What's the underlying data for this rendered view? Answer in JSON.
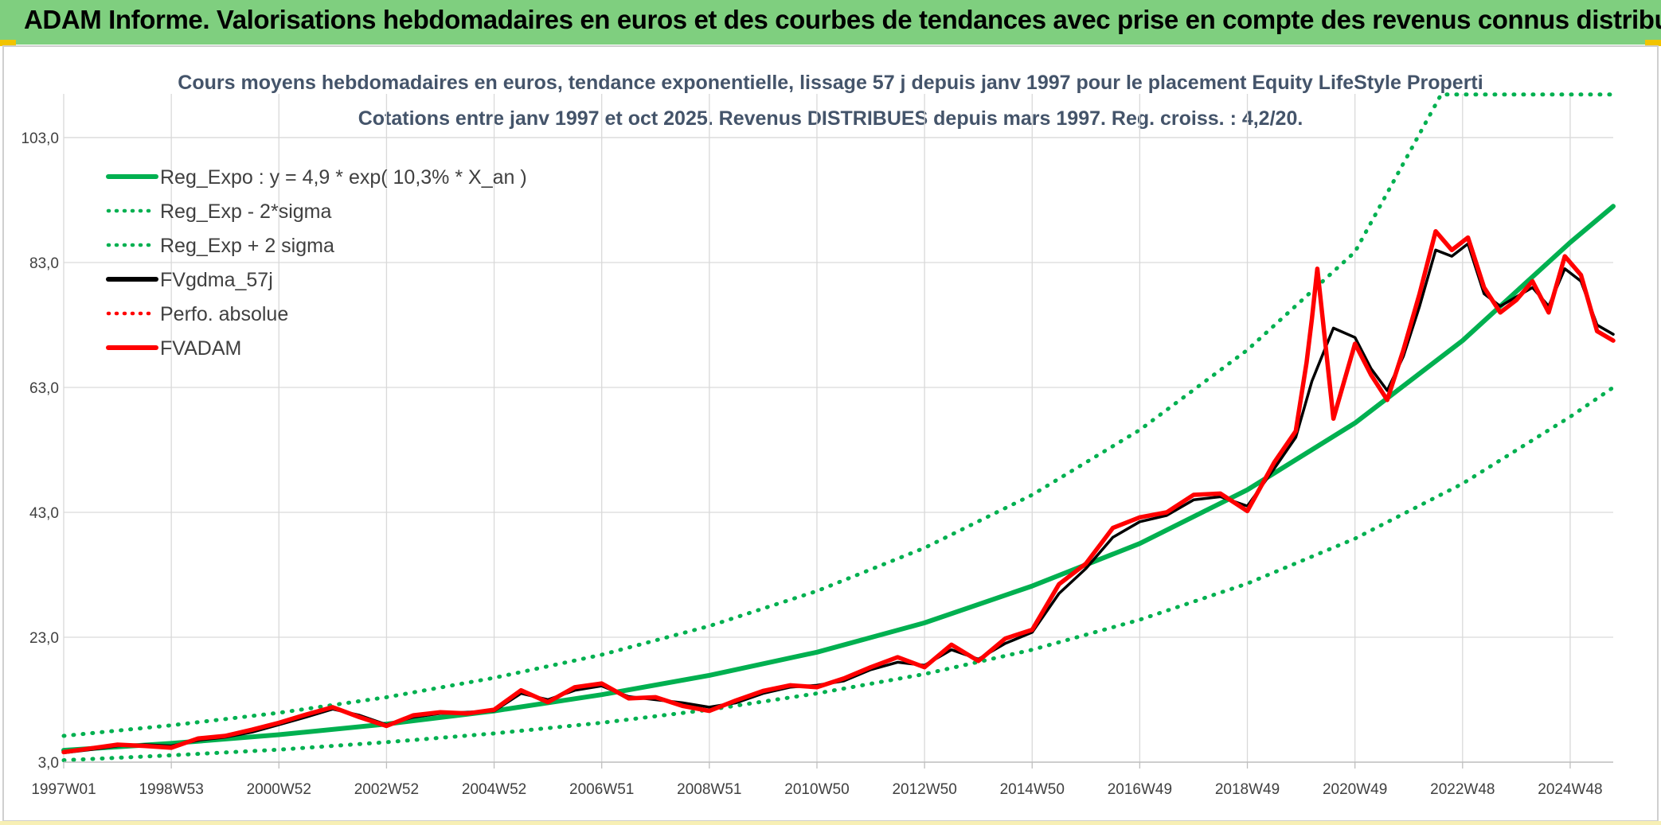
{
  "banner": {
    "title": "ADAM Informe. Valorisations hebdomadaires en euros et des courbes de tendances avec prise en compte des revenus connus distribués"
  },
  "colors": {
    "banner_bg": "#7fcf7f",
    "regression": "#00b050",
    "smoothed": "#000000",
    "price": "#ff0000"
  },
  "chart_data": {
    "type": "line",
    "title": "Cours moyens hebdomadaires en euros, tendance exponentielle, lissage 57 j depuis janv 1997 pour le placement Equity LifeStyle Properti",
    "subtitle": "Cotations entre janv 1997 et oct 2025. Revenus DISTRIBUES depuis mars 1997. Reg. croiss. : 4,2/20.",
    "xlabel": "",
    "ylabel": "",
    "xlim": [
      1997.0,
      2025.8
    ],
    "ylim": [
      3,
      110
    ],
    "y_ticks": [
      "3,0",
      "23,0",
      "43,0",
      "63,0",
      "83,0",
      "103,0"
    ],
    "x_ticks": [
      {
        "x": 1997.0,
        "label": "1997W01"
      },
      {
        "x": 1999.0,
        "label": "1998W53"
      },
      {
        "x": 2001.0,
        "label": "2000W52"
      },
      {
        "x": 2003.0,
        "label": "2002W52"
      },
      {
        "x": 2005.0,
        "label": "2004W52"
      },
      {
        "x": 2007.0,
        "label": "2006W51"
      },
      {
        "x": 2009.0,
        "label": "2008W51"
      },
      {
        "x": 2011.0,
        "label": "2010W50"
      },
      {
        "x": 2013.0,
        "label": "2012W50"
      },
      {
        "x": 2015.0,
        "label": "2014W50"
      },
      {
        "x": 2017.0,
        "label": "2016W49"
      },
      {
        "x": 2019.0,
        "label": "2018W49"
      },
      {
        "x": 2021.0,
        "label": "2020W49"
      },
      {
        "x": 2023.0,
        "label": "2022W48"
      },
      {
        "x": 2025.0,
        "label": "2024W48"
      }
    ],
    "grid": true,
    "legend_position": "top-left",
    "legend": [
      {
        "label": "Reg_Expo : y = 4,9 * exp( 10,3% *  X_an )",
        "color": "#00b050",
        "style": "solid"
      },
      {
        "label": "Reg_Exp - 2*sigma",
        "color": "#00b050",
        "style": "dotted"
      },
      {
        "label": "Reg_Exp + 2 sigma",
        "color": "#00b050",
        "style": "dotted"
      },
      {
        "label": "FVgdma_57j",
        "color": "#000000",
        "style": "solid"
      },
      {
        "label": "Perfo. absolue",
        "color": "#ff0000",
        "style": "dotted"
      },
      {
        "label": "FVADAM",
        "color": "#ff0000",
        "style": "solid"
      }
    ],
    "series": [
      {
        "name": "Reg_Expo : y = 4,9 * exp( 10,3% *  X_an )",
        "color": "#00b050",
        "style": "solid",
        "x": [
          1997.0,
          1999.0,
          2001.0,
          2003.0,
          2005.0,
          2007.0,
          2009.0,
          2011.0,
          2013.0,
          2015.0,
          2017.0,
          2019.0,
          2021.0,
          2023.0,
          2025.0,
          2025.8
        ],
        "y": [
          4.9,
          6.0,
          7.4,
          9.1,
          11.2,
          13.8,
          16.9,
          20.6,
          25.3,
          31.2,
          38.0,
          46.6,
          57.3,
          70.5,
          86.2,
          92.0
        ]
      },
      {
        "name": "Reg_Exp - 2*sigma",
        "color": "#00b050",
        "style": "dotted",
        "x": [
          1997.0,
          1999.0,
          2001.0,
          2003.0,
          2005.0,
          2007.0,
          2009.0,
          2011.0,
          2013.0,
          2015.0,
          2017.0,
          2019.0,
          2021.0,
          2023.0,
          2025.0,
          2025.8
        ],
        "y": [
          3.3,
          4.1,
          5.0,
          6.2,
          7.6,
          9.3,
          11.4,
          14.0,
          17.1,
          21.0,
          25.8,
          31.6,
          38.8,
          47.6,
          58.3,
          63.0
        ]
      },
      {
        "name": "Reg_Exp + 2 sigma",
        "color": "#00b050",
        "style": "dotted",
        "x": [
          1997.0,
          1999.0,
          2001.0,
          2003.0,
          2005.0,
          2007.0,
          2009.0,
          2011.0,
          2013.0,
          2015.0,
          2017.0,
          2019.0,
          2021.0,
          2022.6,
          2025.8
        ],
        "y": [
          7.2,
          8.9,
          10.9,
          13.4,
          16.5,
          20.2,
          24.8,
          30.4,
          37.3,
          45.8,
          56.2,
          69.0,
          84.7,
          109.9,
          109.9
        ]
      },
      {
        "name": "FVgdma_57j",
        "color": "#000000",
        "style": "solid",
        "x": [
          1997.0,
          1997.5,
          1998.0,
          1998.5,
          1999.0,
          1999.5,
          2000.0,
          2000.5,
          2001.0,
          2001.5,
          2002.0,
          2002.5,
          2003.0,
          2003.5,
          2004.0,
          2004.5,
          2005.0,
          2005.5,
          2006.0,
          2006.5,
          2007.0,
          2007.5,
          2008.0,
          2008.5,
          2009.0,
          2009.5,
          2010.0,
          2010.5,
          2011.0,
          2011.5,
          2012.0,
          2012.5,
          2013.0,
          2013.5,
          2014.0,
          2014.5,
          2015.0,
          2015.5,
          2016.0,
          2016.5,
          2017.0,
          2017.5,
          2018.0,
          2018.5,
          2019.0,
          2019.5,
          2019.9,
          2020.2,
          2020.6,
          2021.0,
          2021.3,
          2021.6,
          2021.9,
          2022.2,
          2022.5,
          2022.8,
          2023.1,
          2023.4,
          2023.7,
          2024.0,
          2024.3,
          2024.6,
          2024.9,
          2025.2,
          2025.5,
          2025.8
        ],
        "y": [
          4.5,
          5.0,
          5.6,
          5.8,
          5.6,
          6.5,
          7.0,
          7.8,
          9.0,
          10.2,
          11.5,
          10.5,
          9.0,
          10.2,
          10.8,
          11.0,
          11.2,
          14.0,
          13.0,
          14.5,
          15.2,
          13.5,
          13.0,
          12.5,
          11.8,
          12.5,
          14.0,
          15.0,
          15.3,
          16.0,
          17.8,
          19.0,
          18.5,
          21.0,
          19.5,
          22.0,
          23.8,
          30.0,
          34.0,
          39.0,
          41.5,
          42.5,
          45.0,
          45.5,
          44.0,
          50.0,
          55.0,
          64.0,
          72.5,
          71.0,
          66.0,
          62.5,
          68.0,
          76.0,
          85.0,
          84.0,
          86.0,
          78.0,
          76.0,
          77.5,
          79.0,
          76.0,
          82.0,
          80.0,
          73.0,
          71.5
        ]
      },
      {
        "name": "FVADAM",
        "color": "#ff0000",
        "style": "solid",
        "x": [
          1997.0,
          1997.5,
          1998.0,
          1998.5,
          1999.0,
          1999.5,
          2000.0,
          2000.5,
          2001.0,
          2001.5,
          2002.0,
          2002.5,
          2003.0,
          2003.5,
          2004.0,
          2004.5,
          2005.0,
          2005.5,
          2006.0,
          2006.5,
          2007.0,
          2007.5,
          2008.0,
          2008.5,
          2009.0,
          2009.5,
          2010.0,
          2010.5,
          2011.0,
          2011.5,
          2012.0,
          2012.5,
          2013.0,
          2013.5,
          2014.0,
          2014.5,
          2015.0,
          2015.5,
          2016.0,
          2016.5,
          2017.0,
          2017.5,
          2018.0,
          2018.5,
          2019.0,
          2019.5,
          2019.9,
          2020.1,
          2020.2,
          2020.3,
          2020.6,
          2021.0,
          2021.3,
          2021.6,
          2021.9,
          2022.2,
          2022.5,
          2022.8,
          2023.1,
          2023.4,
          2023.7,
          2024.0,
          2024.3,
          2024.6,
          2024.9,
          2025.2,
          2025.5,
          2025.8
        ],
        "y": [
          4.6,
          5.2,
          5.8,
          5.6,
          5.3,
          6.8,
          7.2,
          8.2,
          9.3,
          10.6,
          11.8,
          10.2,
          8.8,
          10.5,
          11.0,
          10.8,
          11.4,
          14.5,
          12.6,
          15.0,
          15.6,
          13.2,
          13.4,
          12.0,
          11.2,
          12.9,
          14.4,
          15.3,
          15.0,
          16.4,
          18.2,
          19.8,
          18.2,
          21.8,
          19.2,
          22.8,
          24.2,
          31.5,
          34.8,
          40.5,
          42.2,
          43.0,
          45.8,
          46.0,
          43.2,
          51.0,
          56.0,
          67.0,
          74.0,
          82.0,
          58.0,
          70.0,
          65.0,
          61.0,
          69.0,
          78.0,
          88.0,
          85.0,
          87.0,
          79.0,
          75.0,
          77.0,
          80.0,
          75.0,
          84.0,
          81.0,
          72.0,
          70.5
        ]
      }
    ]
  }
}
